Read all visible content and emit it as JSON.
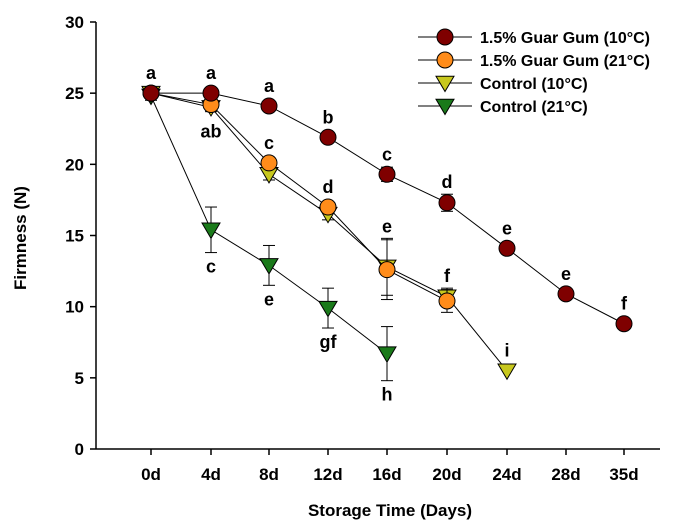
{
  "chart_data": {
    "type": "line",
    "xlabel": "Storage Time (Days)",
    "ylabel": "Firmness (N)",
    "ylim": [
      0,
      30
    ],
    "yticks": [
      0,
      5,
      10,
      15,
      20,
      25,
      30
    ],
    "categories": [
      "0d",
      "4d",
      "8d",
      "12d",
      "16d",
      "20d",
      "24d",
      "28d",
      "35d"
    ],
    "legend_position": "top-right",
    "series": [
      {
        "name": "1.5% Guar Gum (10°C)",
        "color": "#7f0000",
        "marker": "circle",
        "values": [
          25.0,
          25.0,
          24.1,
          21.9,
          19.3,
          17.3,
          14.1,
          10.9,
          8.8
        ],
        "errors": [
          0.2,
          0.2,
          0.3,
          0.3,
          0.5,
          0.6,
          0.2,
          0.2,
          0.2
        ],
        "labels": [
          "a",
          "a",
          "a",
          "b",
          "c",
          "d",
          "e",
          "e",
          "f"
        ]
      },
      {
        "name": "1.5% Guar Gum (21°C)",
        "color": "#ff8c1a",
        "marker": "circle",
        "values": [
          25.0,
          24.2,
          20.1,
          17.0,
          12.6,
          10.4,
          null,
          null,
          null
        ],
        "errors": [
          0.2,
          0.3,
          0.4,
          0.3,
          2.1,
          0.8,
          null,
          null,
          null
        ],
        "labels": [
          "",
          "",
          "c",
          "d",
          "",
          "",
          "",
          "",
          ""
        ]
      },
      {
        "name": "Control (10°C)",
        "color": "#c8c81e",
        "marker": "triangle-down",
        "values": [
          25.0,
          24.0,
          19.3,
          16.5,
          12.8,
          10.7,
          5.5,
          null,
          null
        ],
        "errors": [
          0.2,
          0.3,
          0.4,
          0.4,
          2.0,
          0.6,
          0.2,
          null,
          null
        ],
        "labels": [
          "",
          "",
          "",
          "",
          "e",
          "f",
          "i",
          "",
          ""
        ]
      },
      {
        "name": "Control (21°C)",
        "color": "#1a7a1a",
        "marker": "triangle-down",
        "values": [
          24.8,
          15.4,
          12.9,
          9.9,
          6.7,
          null,
          null,
          null,
          null
        ],
        "errors": [
          0.3,
          1.6,
          1.4,
          1.4,
          1.9,
          null,
          null,
          null,
          null
        ],
        "labels": [
          "",
          "c",
          "e",
          "gf",
          "h",
          "",
          "",
          "",
          ""
        ]
      }
    ],
    "extra_labels": [
      {
        "category": "4d",
        "text": "ab",
        "below_value": 24.0
      }
    ]
  }
}
